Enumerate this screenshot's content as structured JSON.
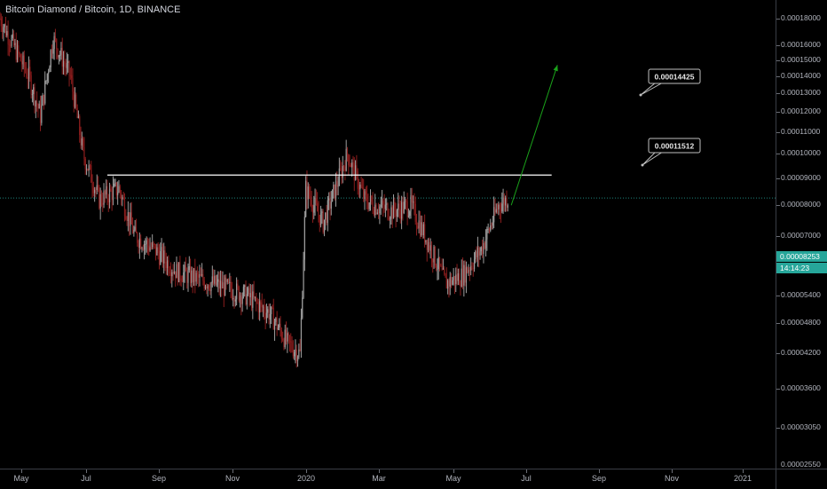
{
  "header": {
    "title": "Bitcoin Diamond / Bitcoin, 1D, BINANCE"
  },
  "price_axis": {
    "labels": [
      {
        "value": 0.00018,
        "text": "0.00018000"
      },
      {
        "value": 0.00016,
        "text": "0.00016000"
      },
      {
        "value": 0.00015,
        "text": "0.00015000"
      },
      {
        "value": 0.00014,
        "text": "0.00014000"
      },
      {
        "value": 0.00013,
        "text": "0.00013000"
      },
      {
        "value": 0.00012,
        "text": "0.00012000"
      },
      {
        "value": 0.00011,
        "text": "0.00011000"
      },
      {
        "value": 0.0001,
        "text": "0.00010000"
      },
      {
        "value": 9e-05,
        "text": "0.00009000"
      },
      {
        "value": 8e-05,
        "text": "0.00008000"
      },
      {
        "value": 7e-05,
        "text": "0.00007000"
      },
      {
        "value": 6e-05,
        "text": "0.00006000"
      },
      {
        "value": 5.4e-05,
        "text": "0.00005400"
      },
      {
        "value": 4.8e-05,
        "text": "0.00004800"
      },
      {
        "value": 4.2e-05,
        "text": "0.00004200"
      },
      {
        "value": 3.6e-05,
        "text": "0.00003600"
      },
      {
        "value": 3.05e-05,
        "text": "0.00003050"
      },
      {
        "value": 2.55e-05,
        "text": "0.00002550"
      }
    ],
    "current_price": "0.00008253",
    "countdown": "14:14:23"
  },
  "time_axis": {
    "labels": [
      "May",
      "Jul",
      "Sep",
      "Nov",
      "2020",
      "Mar",
      "May",
      "Jul",
      "Sep",
      "Nov",
      "2021"
    ]
  },
  "annotations": {
    "target_1": "0.00014425",
    "target_2": "0.00011512"
  },
  "colors": {
    "background": "#000000",
    "bull": "#9e9e9e",
    "bear": "#8b1d1d",
    "horizontal_line": "#ffffff",
    "arrow": "#1aa31a",
    "current_price": "#26a69a"
  },
  "chart_data": {
    "type": "candlestick",
    "title": "Bitcoin Diamond / Bitcoin, 1D, BINANCE",
    "scale": "log",
    "ylim": [
      2.55e-05,
      0.000195
    ],
    "x_range": [
      "2019-04-20",
      "2021-02-20"
    ],
    "series": [
      {
        "date": "2019-04-20",
        "close": 0.00018
      },
      {
        "date": "2019-05-15",
        "close": 0.00014
      },
      {
        "date": "2019-05-25",
        "close": 0.000118
      },
      {
        "date": "2019-06-05",
        "close": 0.000165
      },
      {
        "date": "2019-06-20",
        "close": 0.00014
      },
      {
        "date": "2019-07-01",
        "close": 0.0001
      },
      {
        "date": "2019-07-15",
        "close": 8.2e-05
      },
      {
        "date": "2019-08-01",
        "close": 8.6e-05
      },
      {
        "date": "2019-08-15",
        "close": 7e-05
      },
      {
        "date": "2019-09-01",
        "close": 6.6e-05
      },
      {
        "date": "2019-09-20",
        "close": 6e-05
      },
      {
        "date": "2019-10-10",
        "close": 5.8e-05
      },
      {
        "date": "2019-11-01",
        "close": 5.6e-05
      },
      {
        "date": "2019-11-20",
        "close": 5.4e-05
      },
      {
        "date": "2019-12-10",
        "close": 5e-05
      },
      {
        "date": "2019-12-25",
        "close": 4.4e-05
      },
      {
        "date": "2020-01-05",
        "close": 4.2e-05
      },
      {
        "date": "2020-01-10",
        "close": 8.6e-05
      },
      {
        "date": "2020-01-25",
        "close": 7.4e-05
      },
      {
        "date": "2020-02-15",
        "close": 0.0001
      },
      {
        "date": "2020-03-01",
        "close": 8.2e-05
      },
      {
        "date": "2020-03-10",
        "close": 8e-05
      },
      {
        "date": "2020-03-25",
        "close": 7.8e-05
      },
      {
        "date": "2020-04-10",
        "close": 8e-05
      },
      {
        "date": "2020-04-25",
        "close": 6.8e-05
      },
      {
        "date": "2020-05-10",
        "close": 5.7e-05
      },
      {
        "date": "2020-05-25",
        "close": 5.9e-05
      },
      {
        "date": "2020-06-10",
        "close": 6.6e-05
      },
      {
        "date": "2020-06-25",
        "close": 8e-05
      },
      {
        "date": "2020-07-03",
        "close": 8.253e-05
      }
    ],
    "horizontal_level": 9.12e-05,
    "projection": {
      "from": {
        "date": "2020-07-06",
        "price": 8e-05
      },
      "to": {
        "date": "2020-08-15",
        "price": 0.000147
      }
    },
    "price_labels": [
      0.00014425,
      0.00011512
    ]
  }
}
